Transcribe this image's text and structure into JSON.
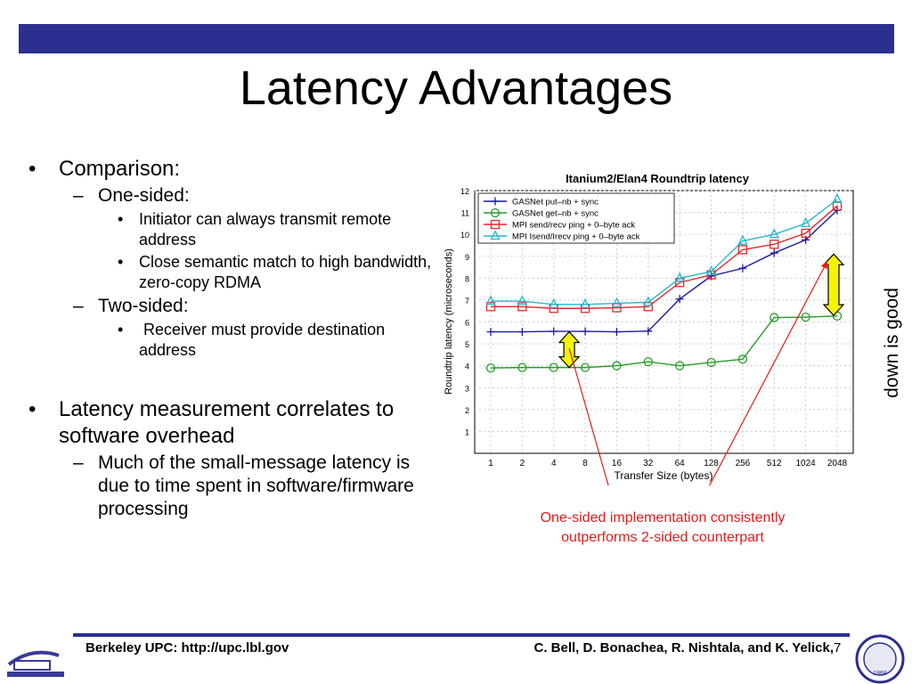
{
  "title": "Latency Advantages",
  "bullets": {
    "comparison": "Comparison:",
    "one_sided": "One-sided:",
    "one_sided_1": "Initiator can always transmit remote address",
    "one_sided_2": "Close semantic match to high bandwidth, zero-copy RDMA",
    "two_sided": "Two-sided:",
    "two_sided_1": " Receiver must provide destination address",
    "latency": "Latency measurement correlates to software overhead",
    "latency_1": "Much of the small-message latency is due to time spent in software/firmware processing"
  },
  "annotation": {
    "down_is_good": "down is good",
    "caption": "One-sided implementation consistently outperforms 2-sided counterpart",
    "arrow_color": "#e31b1b",
    "double_arrow_color": "#f5f500"
  },
  "footer": {
    "left": "Berkeley UPC: http://upc.lbl.gov",
    "right": "C. Bell, D. Bonachea, R. Nishtala, and K. Yelick,",
    "page": "7",
    "left_logo": "berkeley-lab-logo",
    "right_logo": "uc-seal-logo",
    "right_logo_text": "1868",
    "bar_color": "#2b2f8f"
  },
  "chart_data": {
    "type": "line",
    "title": "Itanium2/Elan4 Roundtrip latency",
    "xlabel": "Transfer Size (bytes)",
    "ylabel": "Roundtrip latency (microseconds)",
    "categories": [
      "1",
      "2",
      "4",
      "8",
      "16",
      "32",
      "64",
      "128",
      "256",
      "512",
      "1024",
      "2048"
    ],
    "ylim": [
      0,
      12
    ],
    "yticks": [
      1,
      2,
      3,
      4,
      5,
      6,
      7,
      8,
      9,
      10,
      11,
      12
    ],
    "grid": true,
    "legend_position": "top-left",
    "series": [
      {
        "name": "GASNet put–nb + sync",
        "color": "#1a1aa0",
        "marker": "plus",
        "values": [
          5.55,
          5.55,
          5.57,
          5.57,
          5.55,
          5.58,
          7.05,
          8.1,
          8.45,
          9.15,
          9.75,
          11.1
        ]
      },
      {
        "name": "GASNet get–nb + sync",
        "color": "#2a9a2a",
        "marker": "circle",
        "values": [
          3.9,
          3.92,
          3.92,
          3.92,
          4.0,
          4.18,
          4.0,
          4.15,
          4.3,
          6.2,
          6.22,
          6.27
        ]
      },
      {
        "name": "MPI send/recv ping + 0–byte ack",
        "color": "#e02a2a",
        "marker": "square",
        "values": [
          6.7,
          6.7,
          6.62,
          6.62,
          6.65,
          6.7,
          7.8,
          8.15,
          9.3,
          9.55,
          10.05,
          11.3
        ]
      },
      {
        "name": "MPI Isend/Irecv ping + 0–byte ack",
        "color": "#2ab8c8",
        "marker": "triangle",
        "values": [
          6.95,
          6.95,
          6.8,
          6.8,
          6.85,
          6.9,
          8.0,
          8.3,
          9.7,
          10.0,
          10.5,
          11.6
        ]
      }
    ]
  }
}
